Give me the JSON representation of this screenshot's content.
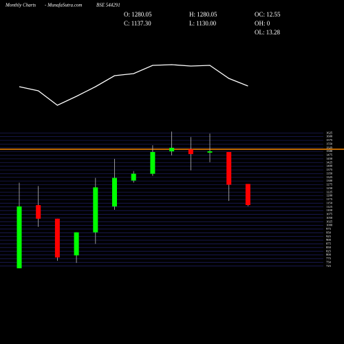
{
  "chart_data": {
    "type": "candlestick",
    "title": "Monthly Charts",
    "source": "- MunafaSutra.com",
    "symbol": "BSE 544291",
    "info": [
      "O: 1280.05",
      "H: 1280.05",
      "OC: 12.55",
      "C: 1137.30",
      "L: 1130.00",
      "OH: 0",
      "OL: 13.28"
    ],
    "open": [
      710,
      1137,
      1045,
      797,
      953,
      1128,
      1303,
      1349,
      1501,
      1515,
      1492,
      1496,
      1280.05
    ],
    "high": [
      1289,
      1266,
      1045,
      953,
      1321,
      1450,
      1367,
      1542,
      1634,
      1597,
      1620,
      1496,
      1280.05
    ],
    "low": [
      710,
      990,
      760,
      746,
      875,
      1105,
      1289,
      1335,
      1473,
      1372,
      1427,
      1165,
      1130
    ],
    "close": [
      1128,
      1045,
      783,
      953,
      1257,
      1321,
      1349,
      1496,
      1524,
      1482,
      1501,
      1275,
      1137.3
    ],
    "up_color": "#00ff00",
    "down_color": "#ff0000",
    "ylim": [
      705,
      1640
    ],
    "yticks": [
      725,
      750,
      775,
      800,
      825,
      850,
      875,
      900,
      925,
      950,
      975,
      1000,
      1025,
      1050,
      1075,
      1100,
      1125,
      1150,
      1175,
      1200,
      1225,
      1250,
      1275,
      1300,
      1325,
      1350,
      1375,
      1400,
      1425,
      1450,
      1475,
      1500,
      1525,
      1550,
      1575,
      1600,
      1625
    ],
    "grid": true,
    "reference_line": {
      "value": 1515,
      "color": "#ff8c00"
    },
    "overlay": {
      "color": "#ffffff",
      "values": [
        74,
        68,
        47,
        60,
        74,
        90,
        93,
        105,
        106,
        104,
        105,
        86,
        75
      ]
    },
    "y2lim": [
      40,
      110
    ]
  }
}
